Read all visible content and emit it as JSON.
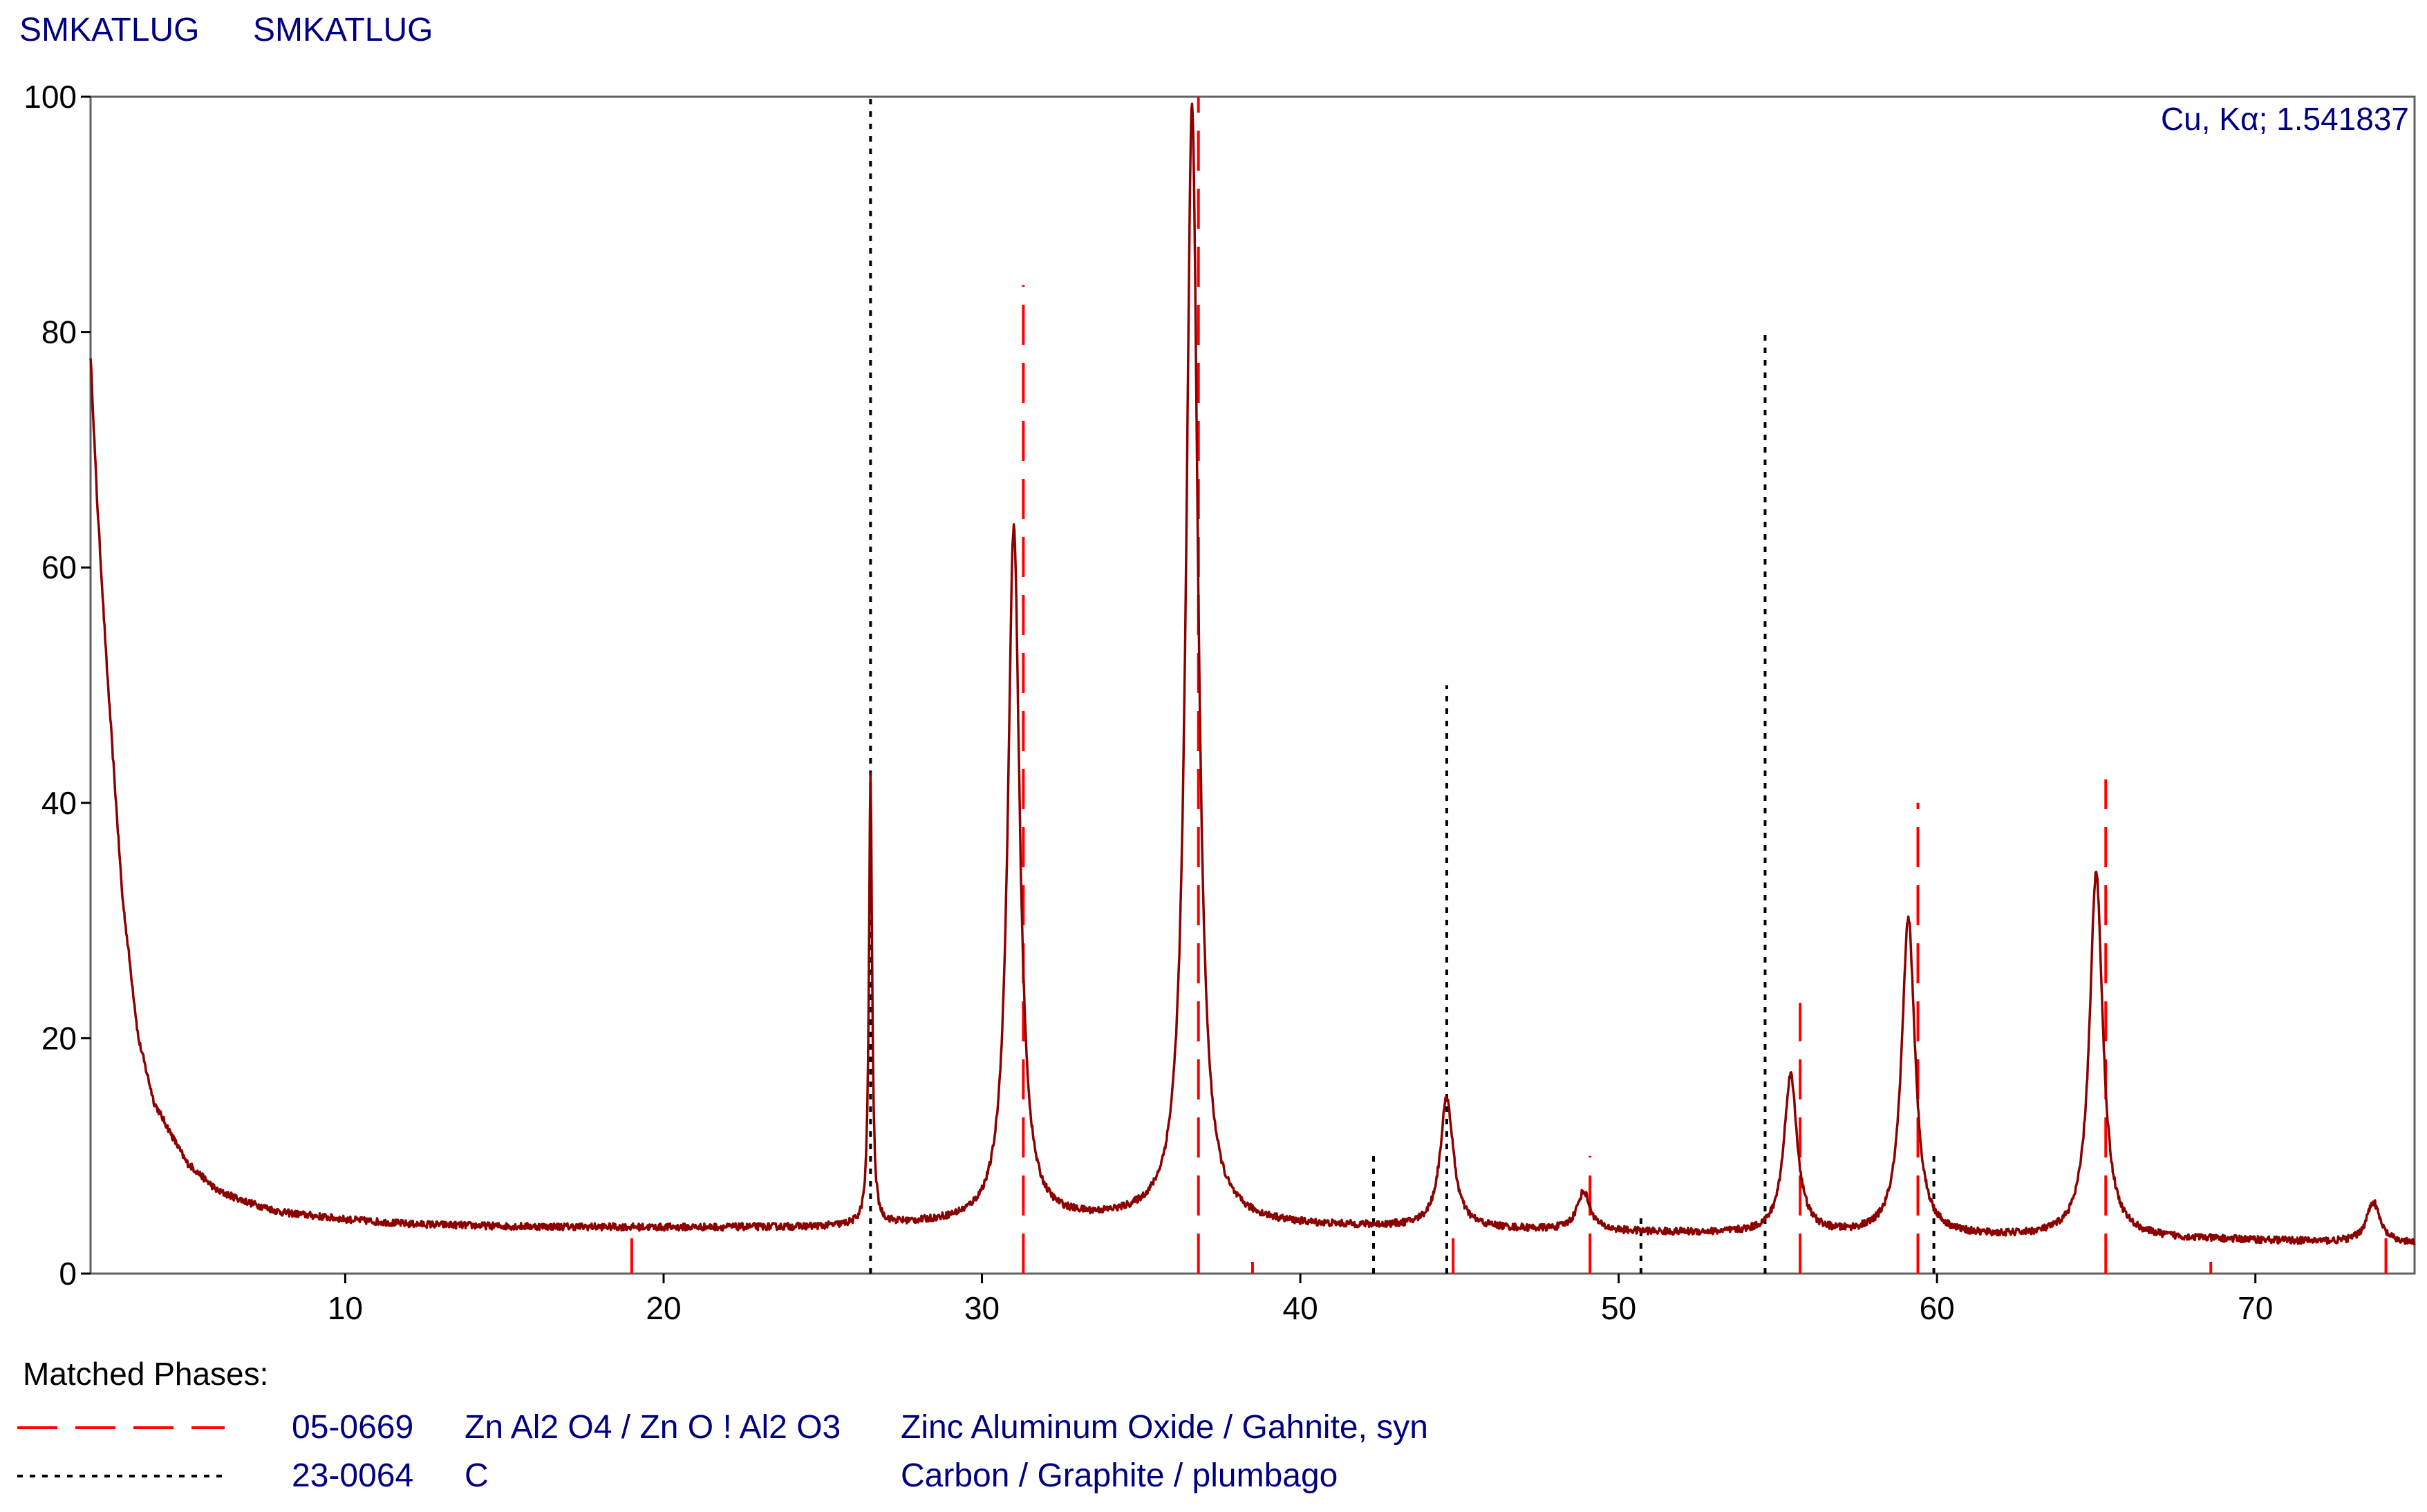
{
  "header": {
    "left_title": "SMKATLUG",
    "right_title": "SMKATLUG"
  },
  "annotation": "Cu, Kα; 1.541837",
  "legend": {
    "title": "Matched Phases:",
    "phases": [
      {
        "line_style": "long-dash",
        "color": "#ff0000",
        "card": "05-0669",
        "formula": "Zn Al2 O4 / Zn O ! Al2 O3",
        "name": "Zinc Aluminum Oxide / Gahnite, syn"
      },
      {
        "line_style": "dotted",
        "color": "#000000",
        "card": "23-0064",
        "formula": "C",
        "name": "Carbon / Graphite / plumbago"
      }
    ]
  },
  "chart_data": {
    "type": "line",
    "xlim": [
      2,
      75
    ],
    "ylim": [
      0,
      100
    ],
    "x_ticks": [
      10,
      20,
      30,
      40,
      50,
      60,
      70
    ],
    "y_ticks": [
      0,
      20,
      40,
      60,
      80,
      100
    ],
    "grid": false,
    "pattern": {
      "name": "SMKATLUG",
      "color": "#8b0000",
      "background": [
        [
          2.0,
          78
        ],
        [
          2.2,
          66
        ],
        [
          2.5,
          52
        ],
        [
          3.0,
          32
        ],
        [
          3.5,
          20
        ],
        [
          4.0,
          14.5
        ],
        [
          5.0,
          9.5
        ],
        [
          6.0,
          7.0
        ],
        [
          7.0,
          6.0
        ],
        [
          8.0,
          5.2
        ],
        [
          10.0,
          4.6
        ],
        [
          12.0,
          4.2
        ],
        [
          15.0,
          4.0
        ],
        [
          20.0,
          3.9
        ],
        [
          25.0,
          3.9
        ],
        [
          30.0,
          4.3
        ],
        [
          35.0,
          4.5
        ],
        [
          40.0,
          4.0
        ],
        [
          45.0,
          3.8
        ],
        [
          50.0,
          3.5
        ],
        [
          55.0,
          3.3
        ],
        [
          60.0,
          3.1
        ],
        [
          65.0,
          3.0
        ],
        [
          70.0,
          2.8
        ],
        [
          75.0,
          2.5
        ]
      ],
      "peaks": [
        {
          "x": 26.5,
          "height": 38,
          "width": 0.12
        },
        {
          "x": 31.0,
          "height": 59,
          "width": 0.45
        },
        {
          "x": 36.6,
          "height": 95,
          "width": 0.45
        },
        {
          "x": 44.6,
          "height": 11,
          "width": 0.5
        },
        {
          "x": 48.9,
          "height": 3.3,
          "width": 0.5
        },
        {
          "x": 55.4,
          "height": 13.5,
          "width": 0.5
        },
        {
          "x": 59.1,
          "height": 27,
          "width": 0.5
        },
        {
          "x": 65.0,
          "height": 31,
          "width": 0.5
        },
        {
          "x": 73.7,
          "height": 3.5,
          "width": 0.5
        }
      ]
    },
    "reference_lines": [
      {
        "phase": "05-0669",
        "style": "long-dash",
        "color": "#ff0000",
        "lines": [
          [
            19.0,
            3
          ],
          [
            31.3,
            84
          ],
          [
            36.8,
            100
          ],
          [
            38.5,
            1
          ],
          [
            44.8,
            3
          ],
          [
            49.1,
            10
          ],
          [
            55.7,
            23
          ],
          [
            59.4,
            40
          ],
          [
            65.3,
            42
          ],
          [
            68.6,
            1
          ],
          [
            74.1,
            3
          ]
        ]
      },
      {
        "phase": "23-0064",
        "style": "dotted",
        "color": "#000000",
        "lines": [
          [
            26.5,
            100
          ],
          [
            42.3,
            10
          ],
          [
            44.6,
            50
          ],
          [
            50.7,
            5
          ],
          [
            54.6,
            80
          ],
          [
            59.9,
            10
          ]
        ]
      }
    ]
  }
}
